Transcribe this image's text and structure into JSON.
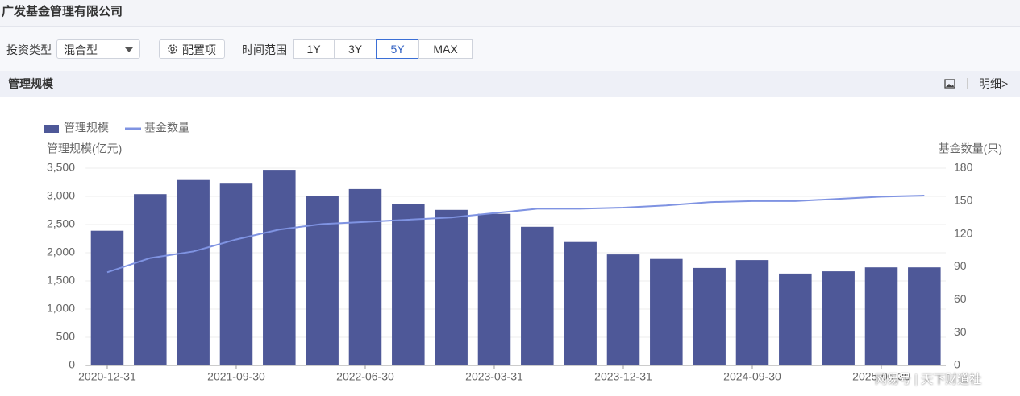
{
  "header": {
    "title": "广发基金管理有限公司"
  },
  "toolbar": {
    "type_label": "投资类型",
    "type_value": "混合型",
    "config_button": "配置项",
    "range_label": "时间范围",
    "ranges": [
      "1Y",
      "3Y",
      "5Y",
      "MAX"
    ],
    "active_range": "5Y"
  },
  "section": {
    "title": "管理规模",
    "detail_link": "明细>"
  },
  "watermark": {
    "source": "网易号",
    "author": "天下财道社"
  },
  "chart_data": {
    "type": "combo",
    "categories": [
      "2020-12-31",
      null,
      null,
      "2021-09-30",
      null,
      null,
      "2022-06-30",
      null,
      null,
      "2023-03-31",
      null,
      null,
      "2023-12-31",
      null,
      null,
      "2024-09-30",
      null,
      null,
      "2025-06-30",
      null
    ],
    "y_label": "管理规模(亿元)",
    "y2_label": "基金数量(只)",
    "ylim": [
      0,
      3500
    ],
    "yticks": [
      0,
      500,
      {
        "value": 1000,
        "label": "1,000"
      },
      {
        "value": 1500,
        "label": "1,500"
      },
      {
        "value": 2000,
        "label": "2,000"
      },
      {
        "value": 2500,
        "label": "2,500"
      },
      {
        "value": 3000,
        "label": "3,000"
      },
      {
        "value": 3500,
        "label": "3,500"
      }
    ],
    "y2lim": [
      0,
      180
    ],
    "y2ticks": [
      0,
      30,
      60,
      90,
      120,
      150,
      180
    ],
    "grid": true,
    "legend": "top-left",
    "series": [
      {
        "name": "管理规模",
        "type": "bar",
        "color": "#4e5898",
        "values": [
          2390,
          3040,
          3290,
          3240,
          3470,
          3010,
          3130,
          2870,
          2760,
          2690,
          2460,
          2190,
          1970,
          1890,
          1730,
          1870,
          1630,
          1670,
          1740,
          1740
        ]
      },
      {
        "name": "基金数量",
        "type": "line",
        "axis": "y2",
        "color": "#7f93e2",
        "values": [
          85,
          98,
          104,
          115,
          124,
          129,
          131,
          133,
          135,
          139,
          143,
          143,
          144,
          146,
          149,
          150,
          150,
          152,
          154,
          155
        ]
      }
    ]
  }
}
